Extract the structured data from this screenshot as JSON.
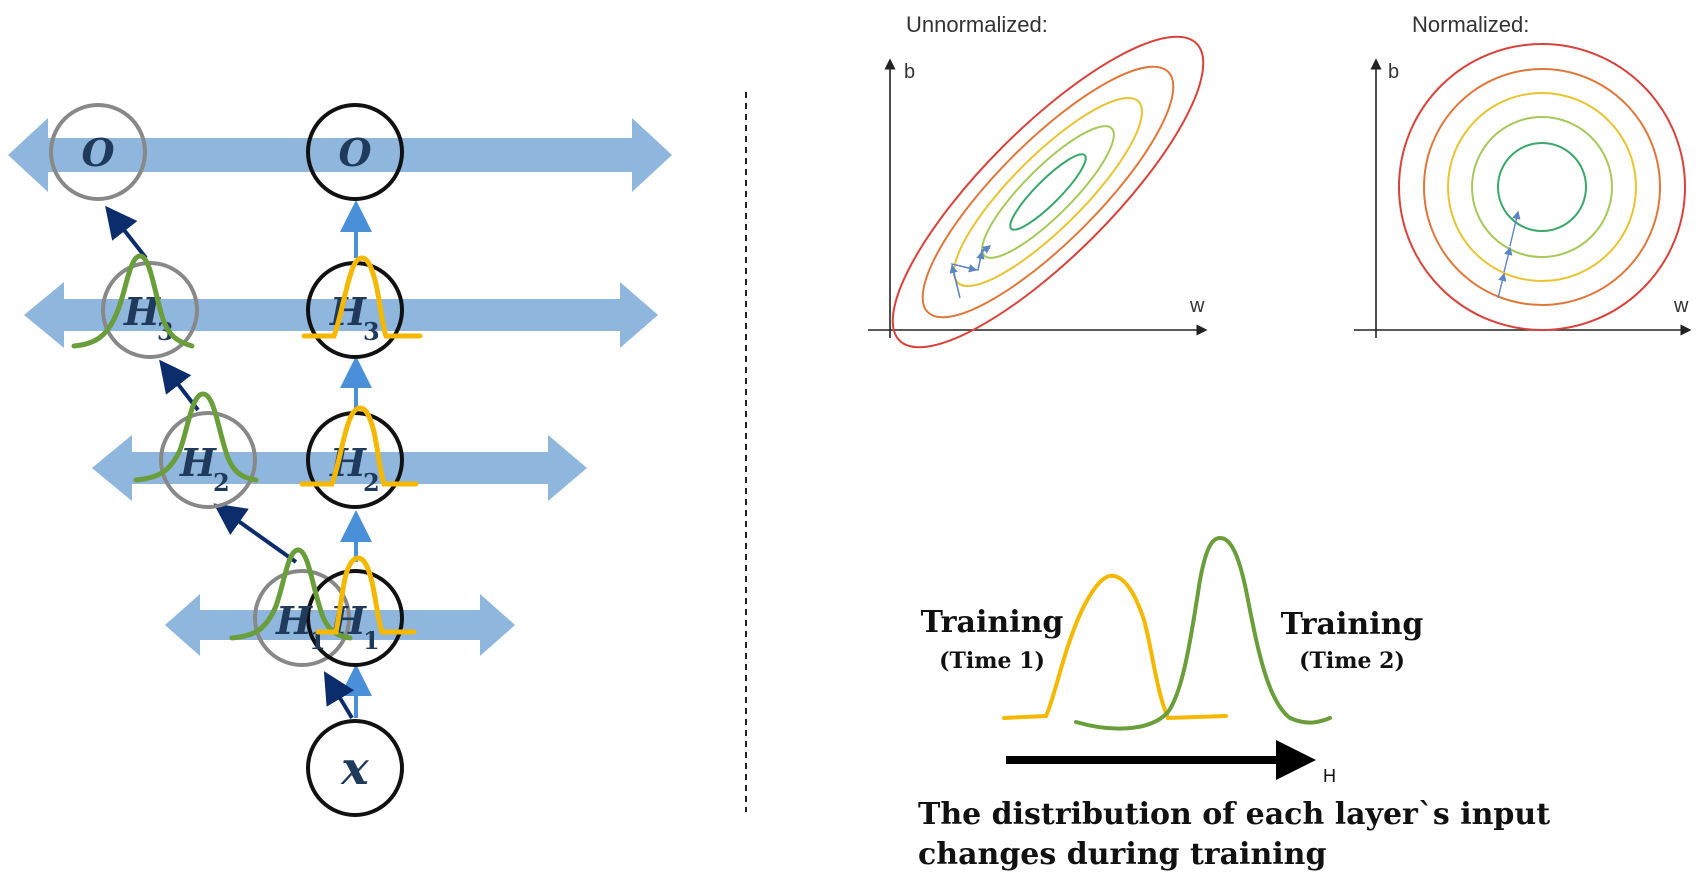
{
  "left_diagram": {
    "output_label": "O",
    "hidden_labels": [
      "H",
      "H",
      "H"
    ],
    "hidden_subscripts": [
      "3",
      "2",
      "1"
    ],
    "input_label": "x",
    "colors": {
      "band": "#8fb6dd",
      "arrow_light": "#4a90d9",
      "arrow_dark": "#0b2d6b",
      "circle_gray": "#888888",
      "circle_black": "#111111",
      "curve_green": "#6a9e3a",
      "curve_yellow": "#f5b800"
    }
  },
  "contour_plots": {
    "unnormalized": {
      "title": "Unnormalized:",
      "x_axis": "w",
      "y_axis": "b"
    },
    "normalized": {
      "title": "Normalized:",
      "x_axis": "w",
      "y_axis": "b"
    },
    "contour_colors": [
      "#d9423a",
      "#e0773a",
      "#e8c332",
      "#a6c95a",
      "#3aa86a"
    ]
  },
  "covariate_shift": {
    "left_label": "Training",
    "left_sub": "(Time 1)",
    "right_label": "Training",
    "right_sub": "(Time 2)",
    "axis_label": "H",
    "caption": "The distribution of each layer`s input changes during training"
  }
}
